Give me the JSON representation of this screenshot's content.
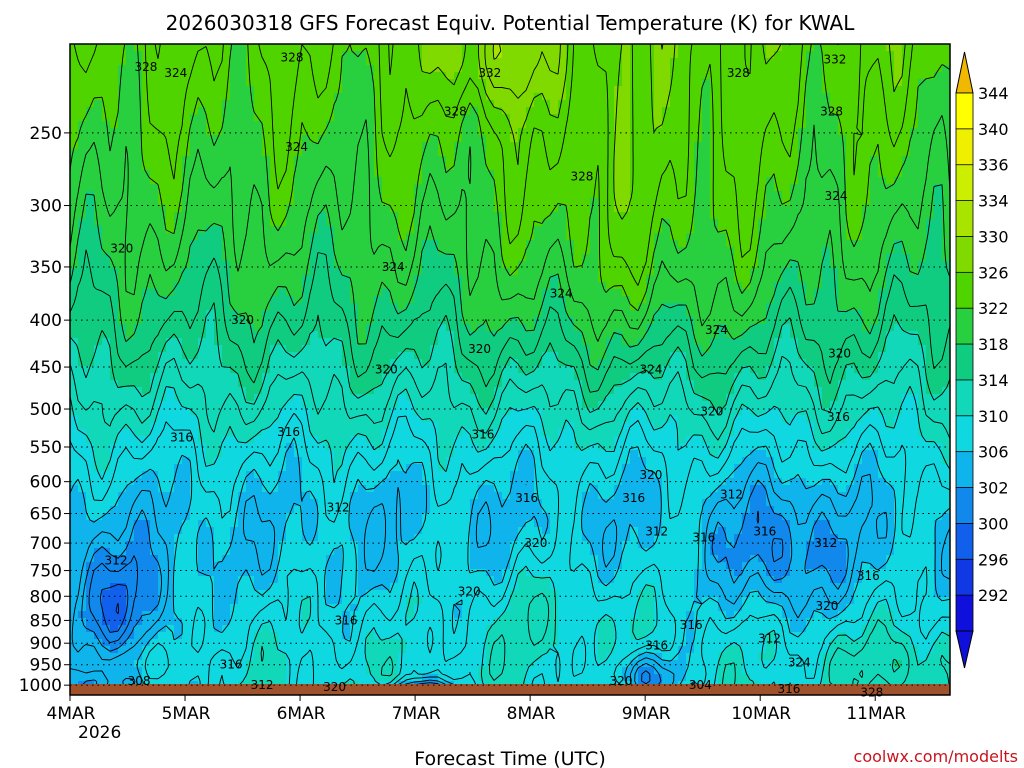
{
  "chart_data": {
    "type": "heatmap",
    "title": "2026030318 GFS Forecast Equiv. Potential Temperature (K) for KWAL",
    "xlabel": "Forecast Time (UTC)",
    "ylabel": "",
    "credit": "coolwx.com/modelts",
    "y_scale": "log-pressure",
    "ylim": [
      1025,
      200
    ],
    "xlim": [
      0,
      7.65
    ],
    "grid": "dotted horizontal",
    "x_ticks": [
      {
        "x": 0,
        "label": "4MAR"
      },
      {
        "x": 1,
        "label": "5MAR"
      },
      {
        "x": 2,
        "label": "6MAR"
      },
      {
        "x": 3,
        "label": "7MAR"
      },
      {
        "x": 4,
        "label": "8MAR"
      },
      {
        "x": 5,
        "label": "9MAR"
      },
      {
        "x": 6,
        "label": "10MAR"
      },
      {
        "x": 7,
        "label": "11MAR"
      }
    ],
    "x_year_label": "2026",
    "y_ticks": [
      250,
      300,
      350,
      400,
      450,
      500,
      550,
      600,
      650,
      700,
      750,
      800,
      850,
      900,
      950,
      1000
    ],
    "colorbar": {
      "labels": [
        344,
        340,
        336,
        334,
        330,
        326,
        322,
        318,
        314,
        310,
        306,
        302,
        300,
        296,
        292
      ],
      "colors": [
        "#ffff00",
        "#eef000",
        "#ccee00",
        "#a8e400",
        "#80da00",
        "#50d400",
        "#28d040",
        "#10cc80",
        "#10d8b8",
        "#10d8e0",
        "#10b4ec",
        "#1088ec",
        "#1060ec",
        "#1038e4",
        "#1010dc"
      ],
      "arrow_top_color": "#f0b800",
      "arrow_bottom_color": "#1010dc"
    },
    "ground_color": "#a0522d",
    "contour_interval": 2,
    "contour_labels": [
      {
        "x": 0.66,
        "p": 212,
        "v": 328
      },
      {
        "x": 0.92,
        "p": 215,
        "v": 324
      },
      {
        "x": 1.93,
        "p": 207,
        "v": 328
      },
      {
        "x": 3.65,
        "p": 215,
        "v": 332
      },
      {
        "x": 5.81,
        "p": 215,
        "v": 328
      },
      {
        "x": 6.65,
        "p": 208,
        "v": 332
      },
      {
        "x": 3.35,
        "p": 237,
        "v": 328
      },
      {
        "x": 6.62,
        "p": 237,
        "v": 328
      },
      {
        "x": 1.97,
        "p": 259,
        "v": 324
      },
      {
        "x": 4.45,
        "p": 279,
        "v": 328
      },
      {
        "x": 6.66,
        "p": 293,
        "v": 324
      },
      {
        "x": 0.45,
        "p": 334,
        "v": 320
      },
      {
        "x": 2.81,
        "p": 350,
        "v": 324
      },
      {
        "x": 4.27,
        "p": 374,
        "v": 324
      },
      {
        "x": 1.5,
        "p": 400,
        "v": 320
      },
      {
        "x": 3.56,
        "p": 430,
        "v": 320
      },
      {
        "x": 5.62,
        "p": 410,
        "v": 324
      },
      {
        "x": 2.75,
        "p": 453,
        "v": 320
      },
      {
        "x": 5.05,
        "p": 453,
        "v": 324
      },
      {
        "x": 6.69,
        "p": 435,
        "v": 320
      },
      {
        "x": 5.58,
        "p": 503,
        "v": 320
      },
      {
        "x": 6.68,
        "p": 510,
        "v": 316
      },
      {
        "x": 0.97,
        "p": 537,
        "v": 316
      },
      {
        "x": 1.9,
        "p": 530,
        "v": 316
      },
      {
        "x": 3.59,
        "p": 533,
        "v": 316
      },
      {
        "x": 5.05,
        "p": 590,
        "v": 320
      },
      {
        "x": 3.97,
        "p": 625,
        "v": 316
      },
      {
        "x": 4.9,
        "p": 625,
        "v": 316
      },
      {
        "x": 5.75,
        "p": 620,
        "v": 312
      },
      {
        "x": 2.33,
        "p": 640,
        "v": 312
      },
      {
        "x": 5.1,
        "p": 680,
        "v": 312
      },
      {
        "x": 5.51,
        "p": 690,
        "v": 316
      },
      {
        "x": 6.04,
        "p": 680,
        "v": 316
      },
      {
        "x": 6.57,
        "p": 700,
        "v": 312
      },
      {
        "x": 4.05,
        "p": 700,
        "v": 320
      },
      {
        "x": 0.4,
        "p": 731,
        "v": 312
      },
      {
        "x": 6.94,
        "p": 760,
        "v": 316
      },
      {
        "x": 3.47,
        "p": 790,
        "v": 320
      },
      {
        "x": 6.58,
        "p": 820,
        "v": 320
      },
      {
        "x": 2.4,
        "p": 850,
        "v": 316
      },
      {
        "x": 5.4,
        "p": 860,
        "v": 316
      },
      {
        "x": 6.08,
        "p": 890,
        "v": 312
      },
      {
        "x": 5.1,
        "p": 905,
        "v": 316
      },
      {
        "x": 1.4,
        "p": 950,
        "v": 316
      },
      {
        "x": 6.34,
        "p": 945,
        "v": 324
      },
      {
        "x": 0.6,
        "p": 990,
        "v": 308
      },
      {
        "x": 1.67,
        "p": 1000,
        "v": 312
      },
      {
        "x": 2.3,
        "p": 1005,
        "v": 320
      },
      {
        "x": 4.79,
        "p": 990,
        "v": 320
      },
      {
        "x": 5.48,
        "p": 1000,
        "v": 304
      },
      {
        "x": 6.25,
        "p": 1010,
        "v": 316
      },
      {
        "x": 6.97,
        "p": 1018,
        "v": 328
      }
    ]
  }
}
